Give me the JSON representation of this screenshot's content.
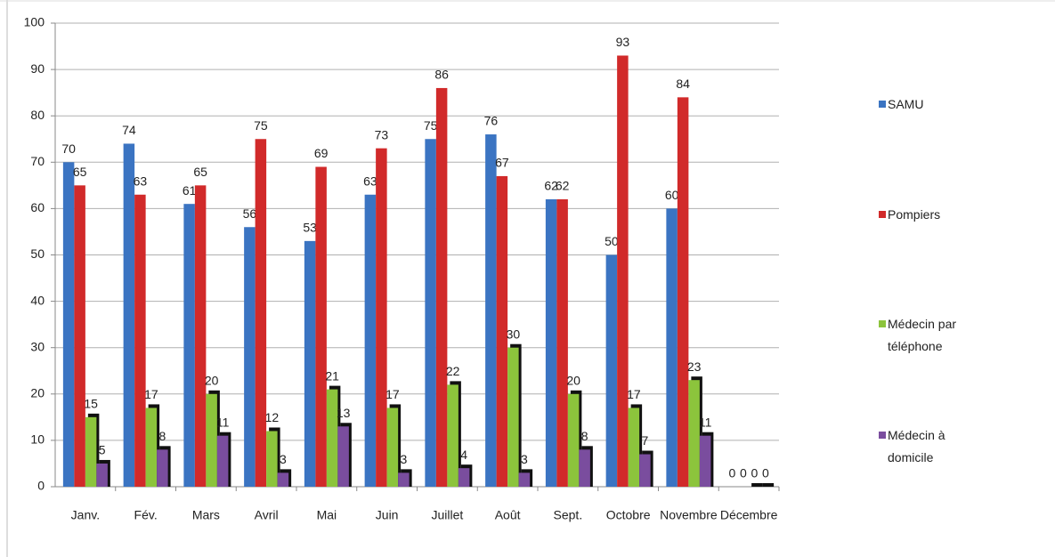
{
  "chart_data": {
    "type": "bar",
    "categories": [
      "Janv.",
      "Fév.",
      "Mars",
      "Avril",
      "Mai",
      "Juin",
      "Juillet",
      "Août",
      "Sept.",
      "Octobre",
      "Novembre",
      "Décembre"
    ],
    "series": [
      {
        "name": "SAMU",
        "color": "#3b74c2",
        "values": [
          70,
          74,
          61,
          56,
          53,
          63,
          75,
          76,
          62,
          50,
          60,
          0
        ]
      },
      {
        "name": "Pompiers",
        "color": "#d12a2a",
        "values": [
          65,
          63,
          65,
          75,
          69,
          73,
          86,
          67,
          62,
          93,
          84,
          0
        ]
      },
      {
        "name": "Médecin par téléphone",
        "color": "#8cc43c",
        "values": [
          15,
          17,
          20,
          12,
          21,
          17,
          22,
          30,
          20,
          17,
          23,
          0
        ]
      },
      {
        "name": "Médecin à domicile",
        "color": "#7a4d9e",
        "values": [
          5,
          8,
          11,
          3,
          13,
          3,
          4,
          3,
          8,
          7,
          11,
          0
        ]
      }
    ],
    "ylim": [
      0,
      100
    ],
    "yticks": [
      0,
      10,
      20,
      30,
      40,
      50,
      60,
      70,
      80,
      90,
      100
    ],
    "grid": true,
    "legend": "right"
  }
}
